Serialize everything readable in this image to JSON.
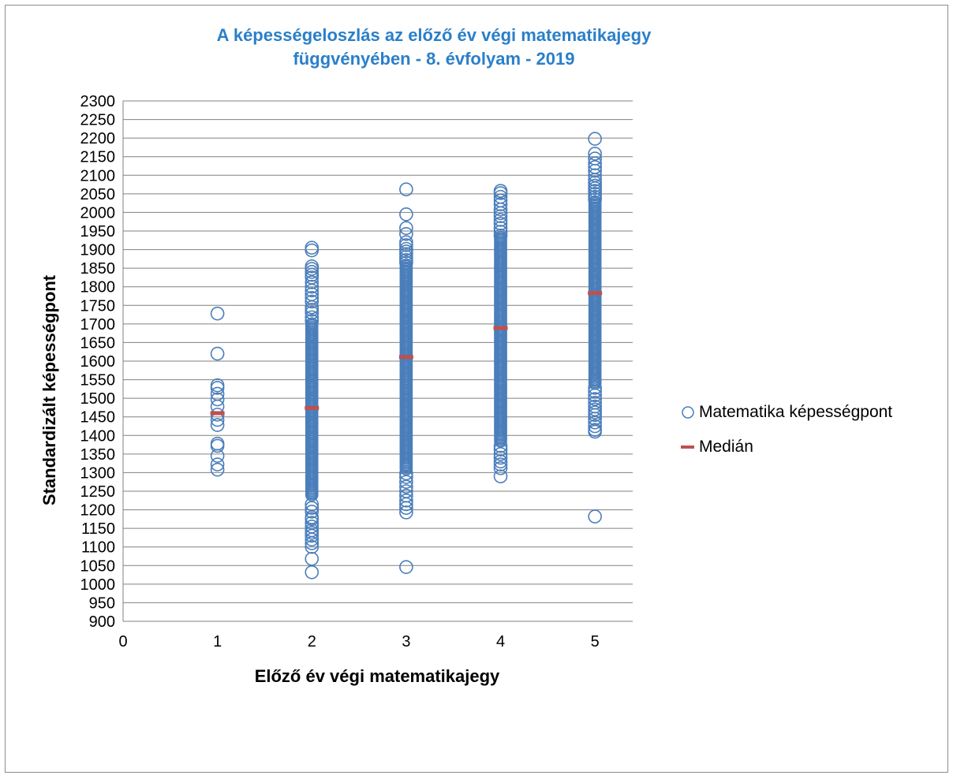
{
  "chart_data": {
    "type": "scatter",
    "title_line1": "A képességeloszlás az előző év végi matematikajegy",
    "title_line2": "függvényében - 8. évfolyam - 2019",
    "xlabel": "Előző év végi matematikajegy",
    "ylabel": "Standardizált képességpont",
    "xlim": [
      0,
      5.4
    ],
    "ylim": [
      900,
      2300
    ],
    "x_ticks": [
      0,
      1,
      2,
      3,
      4,
      5
    ],
    "y_ticks": [
      900,
      950,
      1000,
      1050,
      1100,
      1150,
      1200,
      1250,
      1300,
      1350,
      1400,
      1450,
      1500,
      1550,
      1600,
      1650,
      1700,
      1750,
      1800,
      1850,
      1900,
      1950,
      2000,
      2050,
      2100,
      2150,
      2200,
      2250,
      2300
    ],
    "grid": "horizontal",
    "legend_position": "right",
    "series": [
      {
        "name": "Matematika képességpont",
        "marker": "open-circle",
        "color": "#4a7ebb",
        "groups": [
          {
            "x": 1,
            "points": [
              1728,
              1620,
              1535,
              1528,
              1512,
              1497,
              1478,
              1456,
              1442,
              1428,
              1378,
              1372,
              1345,
              1322,
              1308
            ],
            "range": null
          },
          {
            "x": 2,
            "points": [
              1905,
              1898,
              1855,
              1848,
              1840,
              1832,
              1825,
              1812,
              1800,
              1790,
              1780,
              1770,
              1760,
              1745,
              1738,
              1730,
              1718,
              1708,
              1215,
              1205,
              1195,
              1180,
              1175,
              1165,
              1155,
              1145,
              1138,
              1130,
              1120,
              1110,
              1100,
              1068,
              1032
            ],
            "range": [
              1240,
              1700
            ]
          },
          {
            "x": 3,
            "points": [
              2062,
              1995,
              1958,
              1942,
              1920,
              1912,
              1902,
              1895,
              1888,
              1880,
              1872,
              1865,
              1298,
              1288,
              1275,
              1262,
              1250,
              1238,
              1225,
              1215,
              1205,
              1193,
              1046
            ],
            "range": [
              1310,
              1860
            ]
          },
          {
            "x": 4,
            "points": [
              2058,
              2052,
              2042,
              2032,
              2022,
              2008,
              1998,
              1990,
              1980,
              1970,
              1958,
              1948,
              1938,
              1372,
              1362,
              1350,
              1340,
              1330,
              1322,
              1312,
              1290
            ],
            "range": [
              1385,
              1935
            ]
          },
          {
            "x": 5,
            "points": [
              2198,
              2158,
              2145,
              2132,
              2122,
              2112,
              2100,
              2088,
              2080,
              2072,
              2065,
              2058,
              2050,
              2042,
              2035,
              1528,
              1518,
              1508,
              1498,
              1488,
              1478,
              1470,
              1462,
              1455,
              1445,
              1435,
              1425,
              1415,
              1410,
              1182
            ],
            "range": [
              1540,
              2030
            ]
          }
        ]
      },
      {
        "name": "Medián",
        "marker": "dash",
        "color": "#c0504d",
        "x": [
          1,
          2,
          3,
          4,
          5
        ],
        "y": [
          1460,
          1474,
          1611,
          1689,
          1783
        ]
      }
    ]
  }
}
